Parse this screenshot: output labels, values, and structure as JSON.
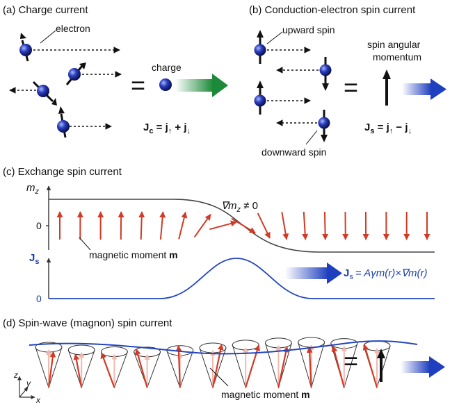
{
  "panels": {
    "a": {
      "title": "(a) Charge current",
      "electron_label": "electron",
      "charge_label": "charge",
      "equals": "=",
      "formula": {
        "lhs": "J",
        "sub": "c",
        "rhs": " = j",
        "up": "↑",
        "plus": " + j",
        "down": "↓"
      }
    },
    "b": {
      "title": "(b) Conduction-electron spin current",
      "upward_label": "upward spin",
      "downward_label": "downward spin",
      "sam_label_1": "spin angular",
      "sam_label_2": "momentum",
      "equals": "=",
      "formula": {
        "lhs": "J",
        "sub": "s",
        "rhs": " = j",
        "up": "↑",
        "minus": " − j",
        "down": "↓"
      }
    },
    "c": {
      "title": "(c) Exchange spin current",
      "mz_axis": "m",
      "mz_sub": "z",
      "zero_top": "0",
      "grad_label": "∇m",
      "grad_sub": "z",
      "grad_rest": " ≠ 0",
      "moment_label": "magnetic moment ",
      "moment_bold": "m",
      "js_axis": "J",
      "js_sub": "s",
      "zero_bottom": "0",
      "formula": "= Aγm(r)×∇m(r)"
    },
    "d": {
      "title": "(d) Spin-wave (magnon) spin current",
      "axis_z": "z",
      "axis_y": "y",
      "axis_x": "x",
      "equals": "=",
      "moment_label": "magnetic moment ",
      "moment_bold": "m"
    }
  },
  "colors": {
    "electron": "#1e2f9e",
    "moment_arrow": "#d13a24",
    "js_curve": "#2244c0",
    "charge_flow": "#1d8a3a",
    "spin_flow": "#1f3fbf"
  }
}
